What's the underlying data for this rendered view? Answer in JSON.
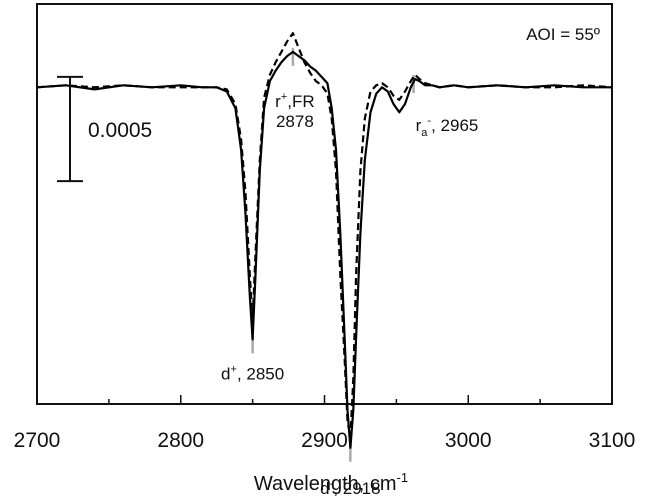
{
  "chart_data": {
    "type": "line",
    "title": "",
    "xlabel": "Wavelength, cm",
    "xlabel_superscript": "-1",
    "ylabel": "",
    "xlim": [
      2700,
      3100
    ],
    "x_ticks": [
      2700,
      2800,
      2900,
      3000,
      3100
    ],
    "ylim": [
      -0.00152,
      0.0004
    ],
    "grid": false,
    "legend": "none",
    "corner_label": "AOI = 55º",
    "scale_bar": {
      "label": "0.0005",
      "value": 0.0005,
      "y_from": -0.00045,
      "y_to": 5e-05
    },
    "series": [
      {
        "style": "solid",
        "color": "#000000",
        "x": [
          2700,
          2720,
          2740,
          2760,
          2780,
          2800,
          2815,
          2825,
          2832,
          2838,
          2842,
          2845,
          2848,
          2850,
          2852,
          2855,
          2858,
          2862,
          2866,
          2870,
          2874,
          2878,
          2882,
          2886,
          2890,
          2894,
          2898,
          2902,
          2905,
          2908,
          2911,
          2914,
          2916,
          2918,
          2920,
          2922,
          2925,
          2928,
          2932,
          2936,
          2940,
          2944,
          2948,
          2952,
          2956,
          2960,
          2963,
          2966,
          2970,
          2975,
          2980,
          2990,
          3000,
          3020,
          3040,
          3060,
          3080,
          3100
        ],
        "y": [
          0.0,
          1e-05,
          -1e-05,
          1e-05,
          0.0,
          1e-05,
          0.0,
          0.0,
          -2e-05,
          -0.0001,
          -0.0003,
          -0.0006,
          -0.001,
          -0.00121,
          -0.0009,
          -0.0004,
          -0.0001,
          3e-05,
          8e-05,
          0.00012,
          0.00015,
          0.00017,
          0.00015,
          0.00013,
          0.0001,
          8e-05,
          5e-05,
          2e-05,
          -0.0001,
          -0.0003,
          -0.0007,
          -0.0012,
          -0.00155,
          -0.00173,
          -0.00155,
          -0.0012,
          -0.0007,
          -0.00035,
          -0.00012,
          -3e-05,
          0.0,
          -2e-05,
          -8e-05,
          -0.00012,
          -8e-05,
          0.0,
          4e-05,
          3e-05,
          1e-05,
          1e-05,
          0.0,
          1e-05,
          0.0,
          1e-05,
          0.0,
          1e-05,
          0.0,
          0.0
        ]
      },
      {
        "style": "dashed",
        "color": "#000000",
        "x": [
          2700,
          2720,
          2740,
          2760,
          2780,
          2800,
          2815,
          2825,
          2832,
          2838,
          2842,
          2845,
          2848,
          2850,
          2852,
          2855,
          2858,
          2862,
          2866,
          2870,
          2874,
          2878,
          2882,
          2886,
          2890,
          2894,
          2898,
          2902,
          2905,
          2908,
          2911,
          2914,
          2916,
          2918,
          2920,
          2922,
          2925,
          2928,
          2932,
          2936,
          2940,
          2944,
          2948,
          2952,
          2956,
          2960,
          2963,
          2966,
          2970,
          2975,
          2980,
          2990,
          3000,
          3020,
          3040,
          3060,
          3080,
          3100
        ],
        "y": [
          0.0,
          1e-05,
          0.0,
          1e-05,
          0.0,
          0.0,
          0.0,
          0.0,
          -1e-05,
          -8e-05,
          -0.00025,
          -0.0005,
          -0.0009,
          -0.00112,
          -0.0008,
          -0.00035,
          -5e-05,
          6e-05,
          0.00012,
          0.00017,
          0.00022,
          0.00026,
          0.00019,
          0.00012,
          7e-05,
          3e-05,
          1e-05,
          -3e-05,
          -0.00015,
          -0.0004,
          -0.0009,
          -0.0013,
          -0.0016,
          -0.00168,
          -0.0014,
          -0.0009,
          -0.0004,
          -0.00015,
          -2e-05,
          1e-05,
          2e-05,
          0.0,
          -4e-05,
          -6e-05,
          -2e-05,
          3e-05,
          6e-05,
          4e-05,
          2e-05,
          1e-05,
          0.0,
          1e-05,
          0.0,
          1e-05,
          0.0,
          0.0,
          1e-05,
          0.0
        ]
      }
    ],
    "annotations": [
      {
        "x": 2850,
        "y": -0.00121,
        "label": "d",
        "sup": "+",
        "suffix": ", 2850",
        "position": "below"
      },
      {
        "x": 2878,
        "y": 0.00017,
        "label": "r",
        "sup": "+",
        "suffix": ",FR",
        "line2": "2878",
        "position": "below"
      },
      {
        "x": 2918,
        "y": -0.00173,
        "label": "d",
        "sup": "-",
        "suffix": ", 2918",
        "position": "below"
      },
      {
        "x": 2962,
        "y": 4e-05,
        "label": "r",
        "sub": "a",
        "sup": "-",
        "suffix": ", 2965",
        "position": "below"
      }
    ]
  }
}
